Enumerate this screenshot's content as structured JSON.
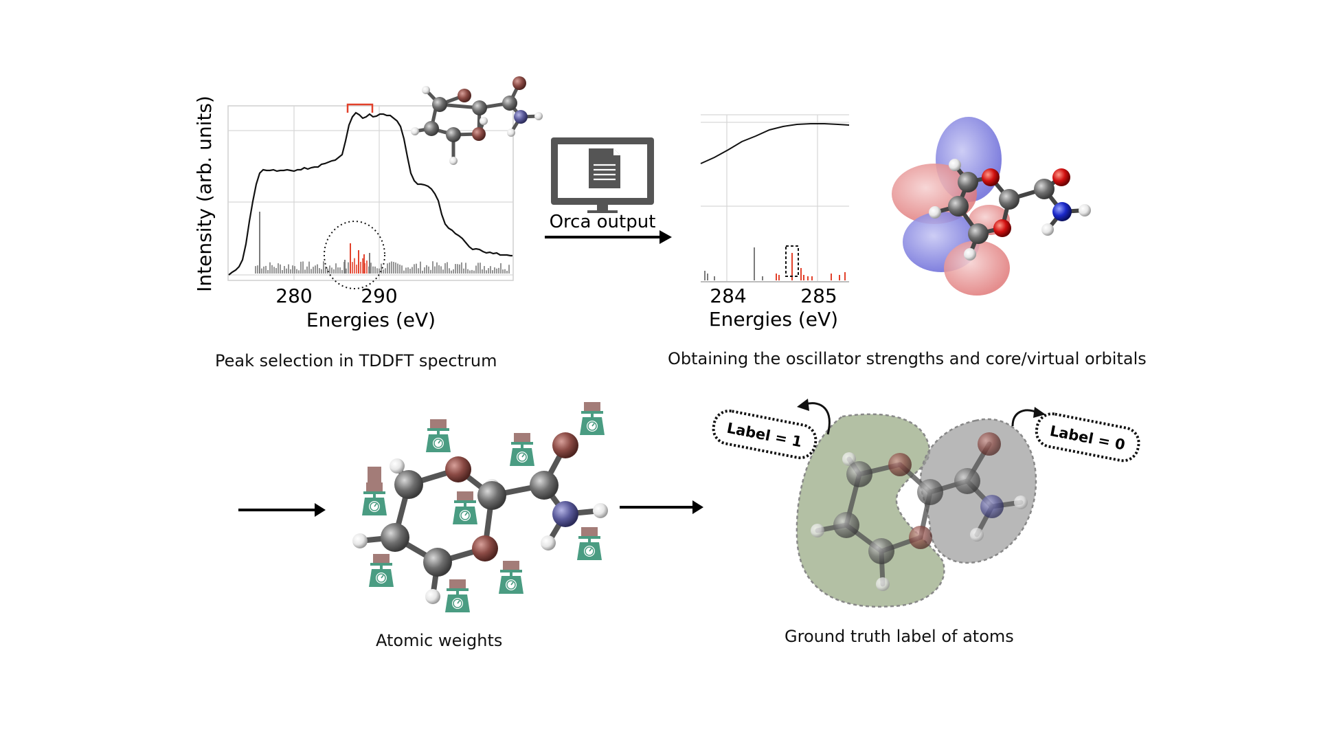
{
  "spectrum_panel": {
    "ylabel": "Intensity (arb. units)",
    "xlabel": "Energies (eV)",
    "xticks": [
      "280",
      "290"
    ],
    "caption": "Peak selection in TDDFT spectrum"
  },
  "orca": {
    "label": "Orca output"
  },
  "zoom_panel": {
    "xlabel": "Energies (eV)",
    "xticks": [
      "284",
      "285"
    ],
    "caption": "Obtaining the oscillator strengths and core/virtual orbitals"
  },
  "weights_panel": {
    "caption": "Atomic weights"
  },
  "labels_panel": {
    "label_one": "Label = 1",
    "label_zero": "Label = 0",
    "caption": "Ground truth label of atoms"
  },
  "colors": {
    "carbon": "#6e6e6e",
    "oxygen": "#8a4a44",
    "nitrogen": "#5a5a9a",
    "hydrogen": "#e6e6e6",
    "selected_peak": "#e2402a",
    "scale_icon": "#4a9c82",
    "weight_block": "#a37c78",
    "label_region_one": "#9aab86",
    "label_region_zero": "#9a9a9a"
  }
}
